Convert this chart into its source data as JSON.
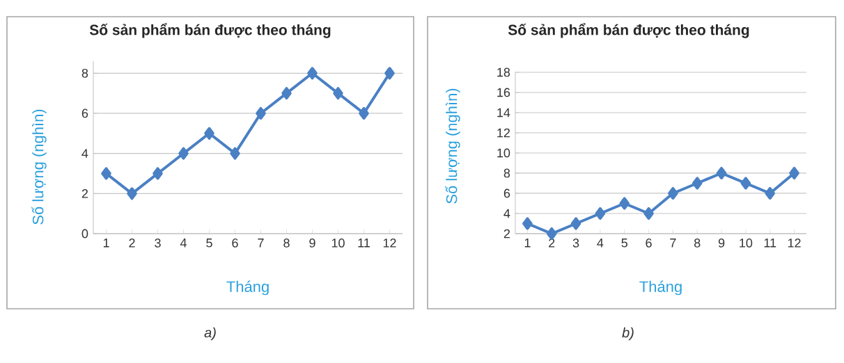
{
  "chart_data": [
    {
      "type": "line",
      "title": "Số sản phẩm bán được theo tháng",
      "xlabel": "Tháng",
      "ylabel": "Số lượng (nghìn)",
      "categories": [
        "1",
        "2",
        "3",
        "4",
        "5",
        "6",
        "7",
        "8",
        "9",
        "10",
        "11",
        "12"
      ],
      "series": [
        {
          "color": "#4a80c4",
          "values": [
            3,
            2,
            3,
            4,
            5,
            4,
            6,
            7,
            8,
            7,
            6,
            8
          ]
        }
      ],
      "ylim": [
        0,
        8.6
      ],
      "yticks": [
        0,
        2,
        4,
        6,
        8
      ],
      "grid": "y",
      "marker": "diamond",
      "line_style": "solid",
      "annotations": [
        "a)"
      ]
    },
    {
      "type": "line",
      "title": "Số sản phẩm bán được theo tháng",
      "xlabel": "Tháng",
      "ylabel": "Số lượng (nghìn)",
      "categories": [
        "1",
        "2",
        "3",
        "4",
        "5",
        "6",
        "7",
        "8",
        "9",
        "10",
        "11",
        "12"
      ],
      "series": [
        {
          "color": "#4a80c4",
          "values": [
            3,
            2,
            3,
            4,
            5,
            4,
            6,
            7,
            8,
            7,
            6,
            8
          ]
        }
      ],
      "ylim": [
        2,
        18
      ],
      "yticks": [
        2,
        4,
        6,
        8,
        10,
        12,
        14,
        16,
        18
      ],
      "grid": "y",
      "marker": "diamond",
      "line_style": "solid",
      "annotations": [
        "b)"
      ]
    }
  ]
}
